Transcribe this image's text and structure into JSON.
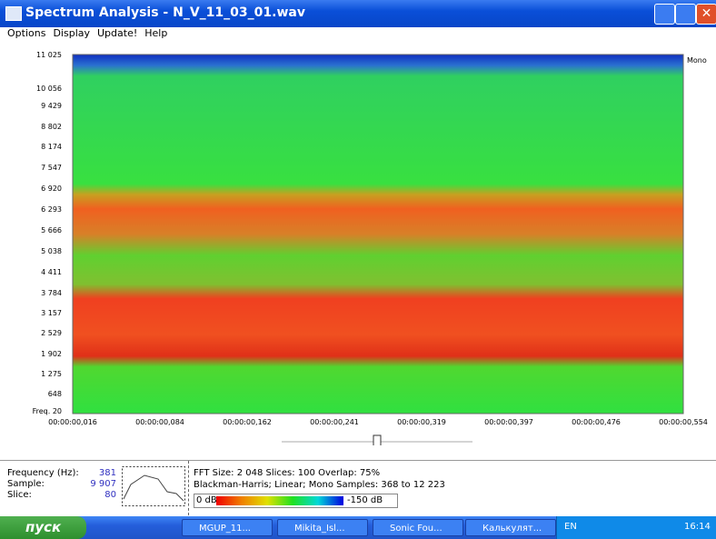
{
  "window": {
    "title": "Spectrum Analysis - N_V_11_03_01.wav"
  },
  "menu": [
    "Options",
    "Display",
    "Update!",
    "Help"
  ],
  "spectrogram": {
    "freq_labels": [
      "11 025",
      "10 056",
      "9 429",
      "8 802",
      "8 174",
      "7 547",
      "6 920",
      "6 293",
      "5 666",
      "5 038",
      "4 411",
      "3 784",
      "3 157",
      "2 529",
      "1 902",
      "1 275",
      "648",
      "Freq. 20"
    ],
    "time_labels": [
      "00:00:00,016",
      "00:00:00,084",
      "00:00:00,162",
      "00:00:00,241",
      "00:00:00,319",
      "00:00:00,397",
      "00:00:00,476",
      "00:00:00,554"
    ],
    "channel": "Mono"
  },
  "info": {
    "rows": [
      [
        "Frequency (Hz):",
        "381"
      ],
      [
        "Sample:",
        "9 907"
      ],
      [
        "Slice:",
        "80"
      ]
    ],
    "lines": [
      "FFT Size: 2 048  Slices: 100  Overlap: 75%",
      "Blackman-Harris; Linear; Mono  Samples: 368 to 12 223"
    ],
    "scale_min": "0 dB",
    "scale_max": "-150 dB"
  },
  "taskbar": {
    "start": "пуск",
    "tasks": [
      "MGUP_11...",
      "Mikita_Isl...",
      "Sonic Fou...",
      "Калькулят..."
    ],
    "lang": "EN",
    "clock": "16:14"
  }
}
